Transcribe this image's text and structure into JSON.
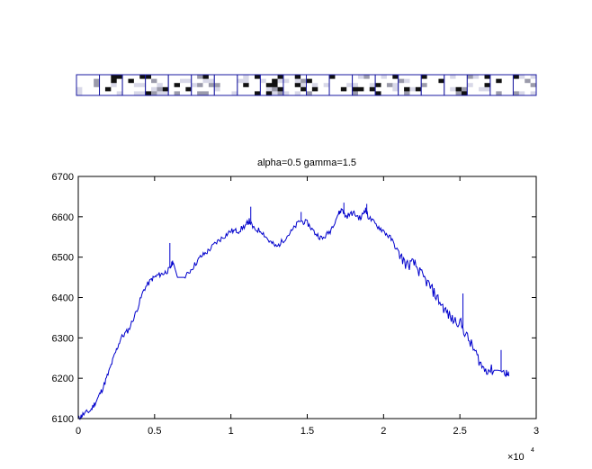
{
  "strip": {
    "cell_count": 20,
    "frame_color": "#1a1aa0"
  },
  "chart_data": {
    "type": "line",
    "title": "alpha=0.5  gamma=1.5",
    "xlabel": "",
    "ylabel": "",
    "xlim": [
      0,
      30000
    ],
    "ylim": [
      6100,
      6700
    ],
    "x_ticks": [
      0,
      5000,
      10000,
      15000,
      20000,
      25000,
      30000
    ],
    "x_tick_labels": [
      "0",
      "0.5",
      "1",
      "1.5",
      "2",
      "2.5",
      "3"
    ],
    "x_multiplier_label": "×10",
    "x_multiplier_exponent": "4",
    "y_ticks": [
      6100,
      6200,
      6300,
      6400,
      6500,
      6600,
      6700
    ],
    "y_tick_labels": [
      "6100",
      "6200",
      "6300",
      "6400",
      "6500",
      "6600",
      "6700"
    ],
    "grid": false,
    "line_color": "#0000cc",
    "series": [
      {
        "x": [
          0,
          300,
          800,
          1200,
          1600,
          2000,
          2400,
          2800,
          3300,
          3800,
          4300,
          4800,
          5200,
          5600,
          6000,
          6200,
          6500,
          7000,
          7500,
          8000,
          8500,
          9000,
          9500,
          10000,
          10500,
          11000,
          11200,
          11500,
          12000,
          12500,
          13000,
          13500,
          14000,
          14500,
          15000,
          15500,
          16000,
          16500,
          17000,
          17300,
          17500,
          18000,
          18500,
          18800,
          19000,
          19500,
          20000,
          20500,
          21000,
          21500,
          22000,
          22500,
          23000,
          23500,
          24000,
          24500,
          25000,
          25500,
          26000,
          26500,
          27000,
          27500,
          28000,
          28200
        ],
        "y": [
          6100,
          6110,
          6120,
          6145,
          6175,
          6215,
          6260,
          6300,
          6320,
          6365,
          6420,
          6445,
          6455,
          6460,
          6470,
          6490,
          6450,
          6450,
          6475,
          6500,
          6515,
          6535,
          6550,
          6565,
          6565,
          6580,
          6590,
          6570,
          6565,
          6540,
          6525,
          6545,
          6565,
          6590,
          6585,
          6560,
          6545,
          6565,
          6605,
          6620,
          6600,
          6610,
          6595,
          6620,
          6600,
          6580,
          6565,
          6545,
          6510,
          6480,
          6485,
          6455,
          6430,
          6400,
          6370,
          6345,
          6340,
          6300,
          6265,
          6225,
          6220,
          6220,
          6215,
          6205
        ]
      }
    ],
    "spikes": [
      {
        "x": 6000,
        "y": 6535
      },
      {
        "x": 11300,
        "y": 6625
      },
      {
        "x": 14600,
        "y": 6612
      },
      {
        "x": 17400,
        "y": 6635
      },
      {
        "x": 18900,
        "y": 6632
      },
      {
        "x": 25200,
        "y": 6410
      },
      {
        "x": 27700,
        "y": 6270
      }
    ]
  }
}
